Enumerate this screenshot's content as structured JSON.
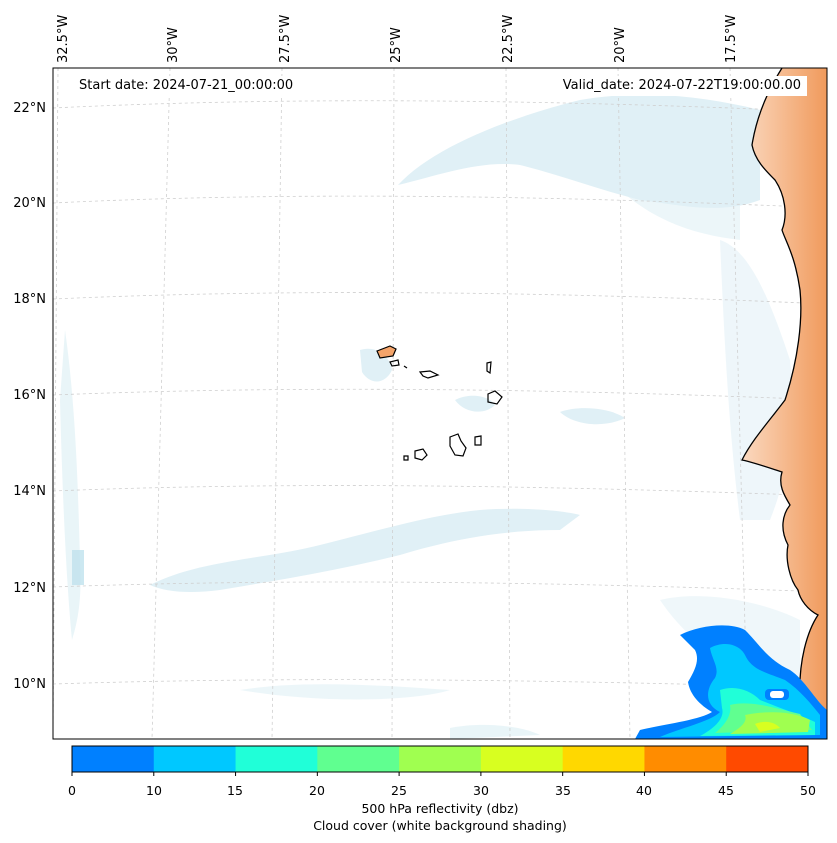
{
  "map": {
    "start_date": "Start date: 2024-07-21_00:00:00",
    "valid_date": "Valid_date: 2024-07-22T19:00:00.00",
    "lon_labels": [
      "32.5°W",
      "30°W",
      "27.5°W",
      "25°W",
      "22.5°W",
      "20°W",
      "17.5°W"
    ],
    "lat_labels": [
      "22°N",
      "20°N",
      "18°N",
      "16°N",
      "14°N",
      "12°N",
      "10°N"
    ]
  },
  "colorbar": {
    "ticks": [
      "0",
      "10",
      "15",
      "20",
      "25",
      "30",
      "35",
      "40",
      "45",
      "50"
    ],
    "colors": [
      "#0080ff",
      "#00c8ff",
      "#20ffd8",
      "#60ff90",
      "#a0ff50",
      "#d8ff20",
      "#ffd800",
      "#ff8c00",
      "#ff4a00"
    ],
    "label": "500 hPa reflectivity (dbz)",
    "sublabel": "Cloud cover (white background shading)"
  },
  "colors": {
    "land_shading": "#f4a46a",
    "cloud_shading": "#c6e4ee",
    "coastline": "#000000",
    "gridline": "#cfcfcf"
  }
}
